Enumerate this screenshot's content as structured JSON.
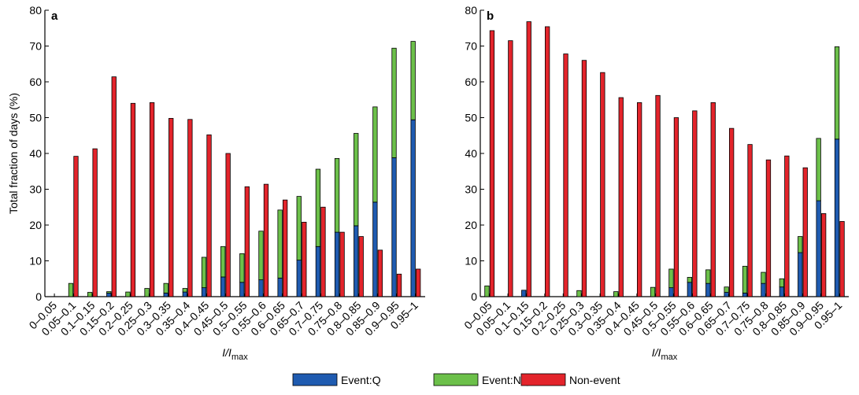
{
  "chart_data": [
    {
      "type": "bar",
      "title": "a",
      "stacked": true,
      "categories": [
        "0–0.05",
        "0.05–0.1",
        "0.1–0.15",
        "0.15–0.2",
        "0.2–0.25",
        "0.25–0.3",
        "0.3–0.35",
        "0.35–0.4",
        "0.4–0.45",
        "0.45–0.5",
        "0.5–0.55",
        "0.55–0.6",
        "0.6–0.65",
        "0.65–0.7",
        "0.7–0.75",
        "0.75–0.8",
        "0.8–0.85",
        "0.85–0.9",
        "0.9–0.95",
        "0.95–1"
      ],
      "x_label": "I/I",
      "x_label_sub": "max",
      "y_label": "Total fraction of days (%)",
      "ylim": [
        0,
        80
      ],
      "yticks": [
        0,
        10,
        20,
        30,
        40,
        50,
        60,
        70,
        80
      ],
      "series": [
        {
          "name": "Event:Q",
          "color": "#1f5bb0",
          "stack": "event",
          "values": [
            0,
            0,
            0,
            1,
            0,
            0,
            1,
            1.3,
            2.5,
            5.5,
            4,
            4.7,
            5.2,
            10.2,
            14,
            18,
            19.8,
            26.4,
            38.8,
            49.4
          ]
        },
        {
          "name": "Event:NQ",
          "color": "#6cc04a",
          "stack": "event",
          "values": [
            0,
            3.7,
            1.2,
            0.4,
            1.3,
            2.3,
            2.7,
            1,
            8.5,
            8.5,
            8,
            13.6,
            19,
            17.8,
            21.6,
            20.6,
            25.8,
            26.6,
            30.6,
            21.9
          ]
        },
        {
          "name": "Non-event",
          "color": "#e3242b",
          "stack": "non",
          "values": [
            0,
            39.2,
            41.3,
            61.4,
            54,
            54.2,
            49.8,
            49.5,
            45.2,
            40,
            30.7,
            31.4,
            27,
            20.8,
            25,
            18,
            16.8,
            13,
            6.3,
            7.7
          ]
        }
      ]
    },
    {
      "type": "bar",
      "title": "b",
      "stacked": true,
      "categories": [
        "0–0.05",
        "0.05–0.1",
        "0.1–0.15",
        "0.15–0.2",
        "0.2–0.25",
        "0.25–0.3",
        "0.3–0.35",
        "0.35–0.4",
        "0.4–0.45",
        "0.45–0.5",
        "0.5–0.55",
        "0.55–0.6",
        "0.6–0.65",
        "0.65–0.7",
        "0.7–0.75",
        "0.75–0.8",
        "0.8–0.85",
        "0.85–0.9",
        "0.9–0.95",
        "0.95–1"
      ],
      "x_label": "I/I",
      "x_label_sub": "max",
      "ylim": [
        0,
        80
      ],
      "yticks": [
        0,
        10,
        20,
        30,
        40,
        50,
        60,
        70,
        80
      ],
      "series": [
        {
          "name": "Event:Q",
          "color": "#1f5bb0",
          "stack": "event",
          "values": [
            0,
            0,
            1.8,
            0,
            0,
            0,
            0,
            0,
            0,
            0,
            2.5,
            4,
            3.7,
            1.2,
            1,
            3.7,
            2.7,
            12.3,
            26.8,
            44
          ]
        },
        {
          "name": "Event:NQ",
          "color": "#6cc04a",
          "stack": "event",
          "values": [
            3,
            0,
            0,
            0,
            0,
            1.7,
            0,
            1.4,
            0,
            2.6,
            5.2,
            1.4,
            3.8,
            1.5,
            7.5,
            3.1,
            2.3,
            4.5,
            17.4,
            25.8
          ]
        },
        {
          "name": "Non-event",
          "color": "#e3242b",
          "stack": "non",
          "values": [
            74.3,
            71.5,
            76.8,
            75.4,
            67.8,
            66,
            62.6,
            55.6,
            54.2,
            56.2,
            50,
            51.9,
            54.2,
            47,
            42.5,
            38.2,
            39.3,
            36,
            23.2,
            21
          ]
        }
      ]
    }
  ]
}
